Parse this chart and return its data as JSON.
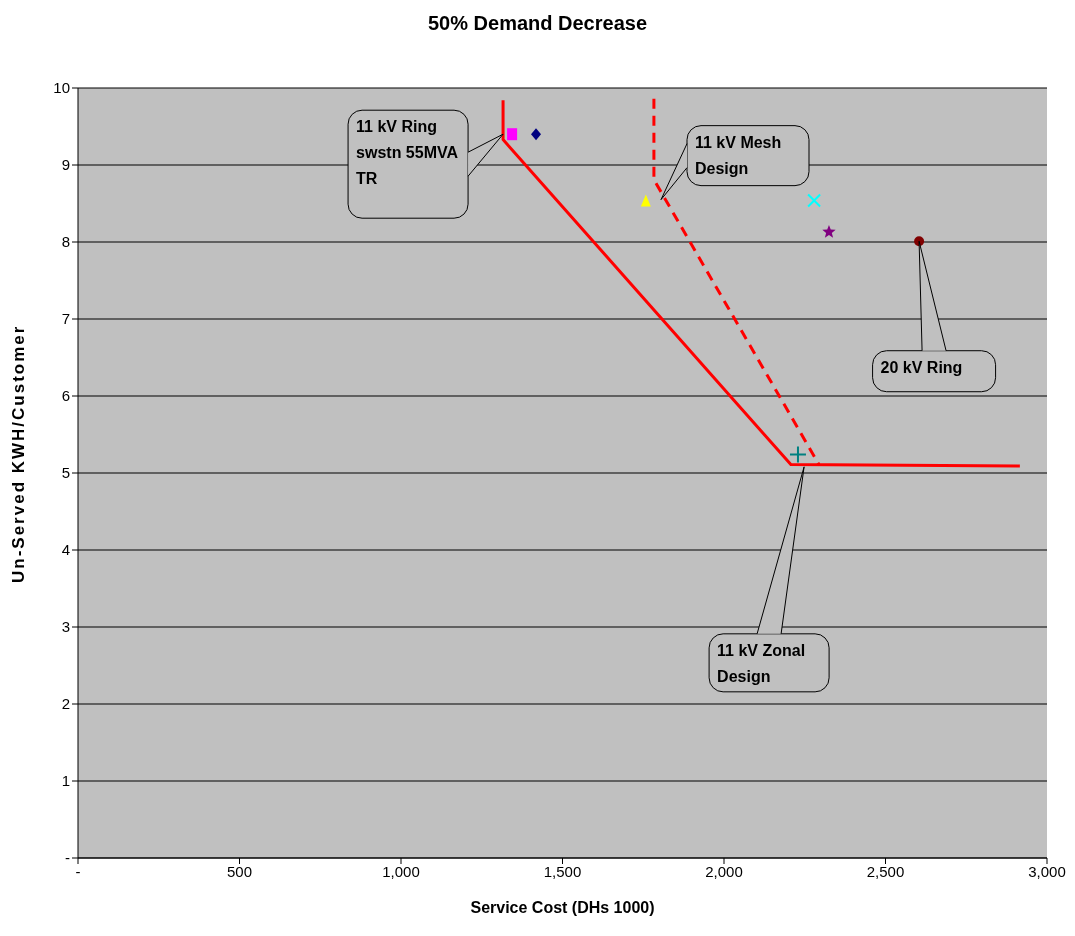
{
  "chart_data": {
    "type": "scatter",
    "title": "50% Demand Decrease",
    "xlabel": "Service Cost (DHs 1000)",
    "ylabel": "Un-Served KWH/Customer",
    "xlim": [
      0,
      3000
    ],
    "xticks": [
      {
        "value": 0,
        "label": "-"
      },
      500,
      {
        "value": 1000,
        "label": "1,000"
      },
      {
        "value": 1500,
        "label": "1,500"
      },
      {
        "value": 2000,
        "label": "2,000"
      },
      {
        "value": 2500,
        "label": "2,500"
      },
      {
        "value": 3000,
        "label": "3,000"
      }
    ],
    "ylim": [
      0,
      10
    ],
    "yticks": [
      {
        "value": 0,
        "label": "-"
      },
      1,
      2,
      3,
      4,
      5,
      6,
      7,
      8,
      9,
      10
    ],
    "grid": "y",
    "legend": false,
    "series": [
      {
        "type": "line",
        "color": "#ff0000",
        "line_style": "solid",
        "marker": "none",
        "x": [
          1316,
          1316,
          2207,
          2916
        ],
        "values": [
          9.84,
          9.33,
          5.11,
          5.09
        ]
      },
      {
        "type": "line",
        "color": "#ff0000",
        "line_style": "dashed",
        "marker": "none",
        "x": [
          1783,
          1783,
          2294
        ],
        "values": [
          9.86,
          8.81,
          5.11
        ]
      },
      {
        "color": "#000080",
        "marker": "diamond",
        "x": [
          1418
        ],
        "values": [
          9.4
        ]
      },
      {
        "color": "#ff00ff",
        "marker": "square",
        "x": [
          1344
        ],
        "values": [
          9.4
        ]
      },
      {
        "color": "#ffff00",
        "marker": "triangle",
        "x": [
          1758
        ],
        "values": [
          8.54
        ]
      },
      {
        "color": "#00ffff",
        "marker": "x",
        "x": [
          2279
        ],
        "values": [
          8.54
        ]
      },
      {
        "color": "#800080",
        "marker": "star",
        "x": [
          2325
        ],
        "values": [
          8.13
        ]
      },
      {
        "color": "#800000",
        "marker": "circle",
        "x": [
          2604
        ],
        "values": [
          8.01
        ]
      },
      {
        "color": "#008080",
        "marker": "cross",
        "x": [
          2229
        ],
        "values": [
          5.24
        ]
      }
    ],
    "annotations": [
      {
        "text": "11 kV Ring\nswstn 55MVA\nTR",
        "x": 1316,
        "y": 9.4
      },
      {
        "text": "11 kV Mesh\nDesign",
        "x": 1805,
        "y": 8.55
      },
      {
        "text": "20 kV Ring",
        "x": 2604,
        "y": 8.01
      },
      {
        "text": "11 kV Zonal\nDesign",
        "x": 2248,
        "y": 5.08
      }
    ]
  }
}
